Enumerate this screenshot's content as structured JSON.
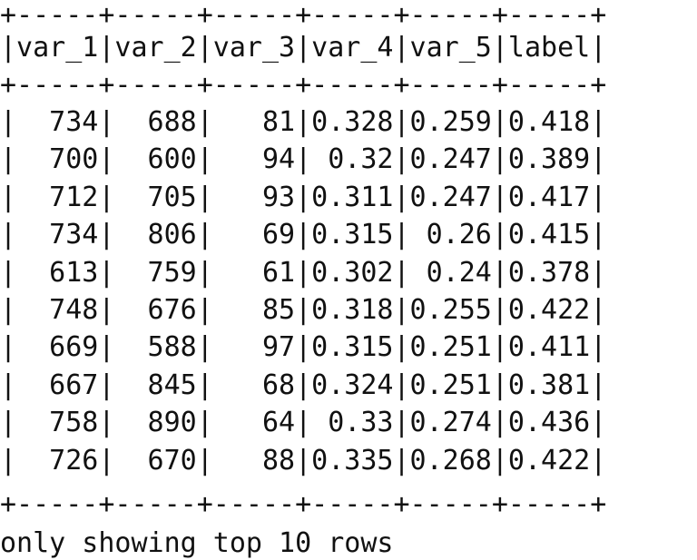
{
  "table": {
    "border": "+-----+-----+-----+-----+-----+-----+",
    "columns": [
      "var_1",
      "var_2",
      "var_3",
      "var_4",
      "var_5",
      "label"
    ],
    "rows": [
      [
        "734",
        "688",
        "81",
        "0.328",
        "0.259",
        "0.418"
      ],
      [
        "700",
        "600",
        "94",
        "0.32",
        "0.247",
        "0.389"
      ],
      [
        "712",
        "705",
        "93",
        "0.311",
        "0.247",
        "0.417"
      ],
      [
        "734",
        "806",
        "69",
        "0.315",
        "0.26",
        "0.415"
      ],
      [
        "613",
        "759",
        "61",
        "0.302",
        "0.24",
        "0.378"
      ],
      [
        "748",
        "676",
        "85",
        "0.318",
        "0.255",
        "0.422"
      ],
      [
        "669",
        "588",
        "97",
        "0.315",
        "0.251",
        "0.411"
      ],
      [
        "667",
        "845",
        "68",
        "0.324",
        "0.251",
        "0.381"
      ],
      [
        "758",
        "890",
        "64",
        "0.33",
        "0.274",
        "0.436"
      ],
      [
        "726",
        "670",
        "88",
        "0.335",
        "0.268",
        "0.422"
      ]
    ]
  },
  "footer": "only showing top 10 rows"
}
